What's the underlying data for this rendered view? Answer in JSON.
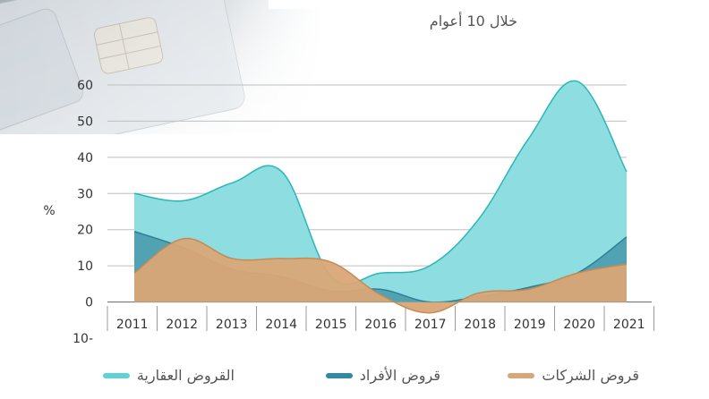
{
  "subtitle": "خلال 10 أعوام",
  "colors": {
    "real_estate": "#8EDDE0",
    "real_estate_stroke": "#28B7B8",
    "individuals": "#4E9EAF",
    "individuals_stroke": "#2C7F96",
    "corporates": "#D9A676",
    "corporates_stroke": "#C48A56",
    "grid": "#BFBFBF",
    "axis": "#666666"
  },
  "legend": [
    {
      "label": "قروض الشركات",
      "color": "#D9A676"
    },
    {
      "label": "قروض الأفراد",
      "color": "#2E8BA3"
    },
    {
      "label": "القروض العقارية",
      "color": "#5FD2D5"
    }
  ],
  "chart_data": {
    "type": "area",
    "x": [
      "2011",
      "2012",
      "2013",
      "2014",
      "2015",
      "2016",
      "2017",
      "2018",
      "2019",
      "2020",
      "2021"
    ],
    "ylabel": "%",
    "ylim": [
      -10,
      60
    ],
    "y_ticks": [
      "60",
      "50",
      "40",
      "30",
      "20",
      "10",
      "0",
      "10-"
    ],
    "y_tick_values": [
      60,
      50,
      40,
      30,
      20,
      10,
      0,
      -10
    ],
    "series": [
      {
        "name": "القروض العقارية",
        "values": [
          30,
          28,
          33,
          36,
          7,
          8,
          10,
          23,
          45,
          61,
          36
        ]
      },
      {
        "name": "قروض الأفراد",
        "values": [
          19.5,
          15,
          9,
          7,
          3,
          3.5,
          0,
          1.5,
          4,
          8,
          18
        ]
      },
      {
        "name": "قروض الشركات",
        "values": [
          8,
          17.5,
          12,
          12,
          11,
          2,
          -3,
          2.5,
          3.5,
          8,
          10.5
        ]
      }
    ]
  }
}
